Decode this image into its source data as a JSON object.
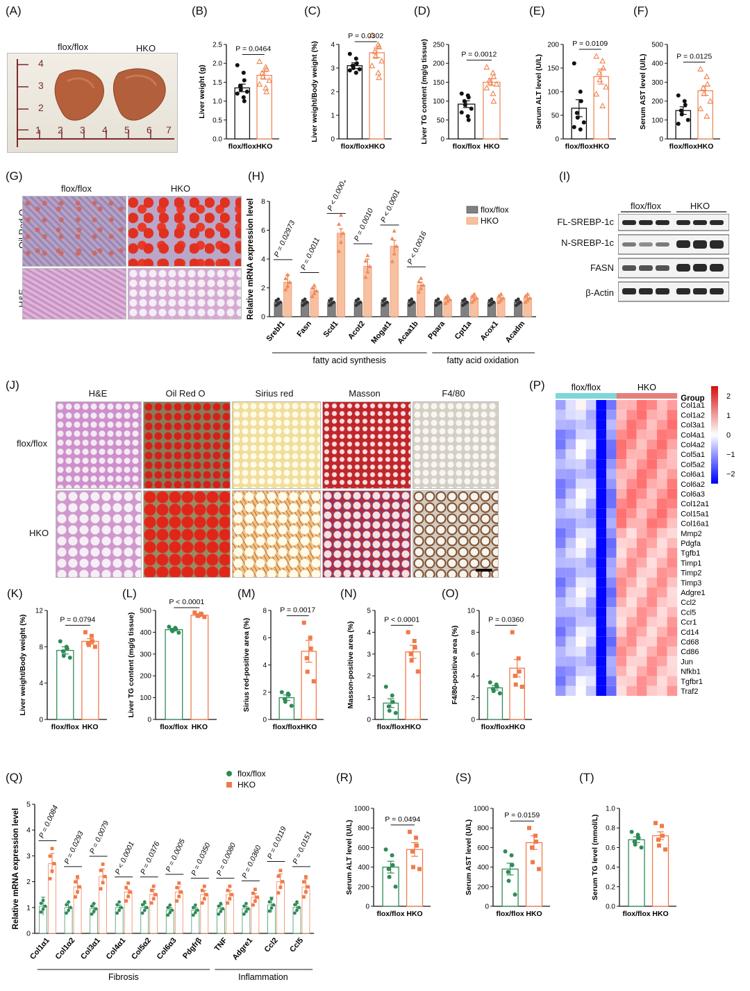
{
  "colors": {
    "flox": "#111111",
    "hko": "#ef8a5a",
    "flox_green": "#2e8b57",
    "hko_orange": "#f07a4a",
    "flox_bar": "#808080",
    "hko_bar": "#f7c0a0"
  },
  "panel_labels": [
    "(A)",
    "(B)",
    "(C)",
    "(D)",
    "(E)",
    "(F)",
    "(G)",
    "(H)",
    "(I)",
    "(J)",
    "(K)",
    "(L)",
    "(M)",
    "(N)",
    "(O)",
    "(P)",
    "(Q)",
    "(R)",
    "(S)",
    "(T)"
  ],
  "panelA": {
    "label_flox": "flox/flox",
    "label_hko": "HKO",
    "ruler_numbers": [
      "4",
      "3",
      "2",
      "1",
      "2",
      "3",
      "4",
      "5",
      "6",
      "7"
    ]
  },
  "panelG": {
    "cols": [
      "flox/flox",
      "HKO"
    ],
    "rows": [
      "Oil Red O",
      "H&E"
    ]
  },
  "panelI": {
    "groups": [
      "flox/flox",
      "HKO"
    ],
    "bands": [
      "FL-SREBP-1c",
      "N-SREBP-1c",
      "FASN",
      "β-Actin"
    ]
  },
  "panelJ": {
    "cols": [
      "H&E",
      "Oil Red O",
      "Sirius red",
      "Masson",
      "F4/80"
    ],
    "rows": [
      "flox/flox",
      "HKO"
    ]
  },
  "chart_data": [
    {
      "id": "B",
      "type": "bar",
      "categories": [
        "flox/flox",
        "HKO"
      ],
      "values": [
        1.35,
        1.68
      ],
      "errors": [
        0.1,
        0.1
      ],
      "ylim": [
        0,
        2.5
      ],
      "ticks": [
        "0.0",
        "0.5",
        "1.0",
        "1.5",
        "2.0",
        "2.5"
      ],
      "ylabel": "Liver weight (g)",
      "pvalue": "P = 0.0464",
      "points": [
        [
          1.95,
          1.75,
          1.55,
          1.4,
          1.3,
          1.25,
          1.2,
          1.1,
          1.0
        ],
        [
          2.05,
          1.9,
          1.85,
          1.75,
          1.65,
          1.55,
          1.45,
          1.35,
          1.25
        ]
      ]
    },
    {
      "id": "C",
      "type": "bar",
      "categories": [
        "flox/flox",
        "HKO"
      ],
      "values": [
        3.1,
        3.65
      ],
      "errors": [
        0.12,
        0.2
      ],
      "ylim": [
        0,
        4
      ],
      "ticks": [
        "0",
        "1",
        "2",
        "3",
        "4"
      ],
      "ylabel": "Liver weight/Body weight (%)",
      "pvalue": "P = 0.0302",
      "points": [
        [
          3.6,
          3.4,
          3.2,
          3.1,
          3.0,
          2.95,
          2.9,
          2.8
        ],
        [
          4.4,
          4.0,
          3.9,
          3.7,
          3.5,
          3.3,
          3.1,
          2.8,
          2.6
        ]
      ]
    },
    {
      "id": "D",
      "type": "bar",
      "categories": [
        "flox/flox",
        "HKO"
      ],
      "values": [
        92,
        150
      ],
      "errors": [
        9,
        9
      ],
      "ylim": [
        0,
        250
      ],
      "ticks": [
        "0",
        "50",
        "100",
        "150",
        "200",
        "250"
      ],
      "ylabel": "Liver TG content (mg/g tissue)",
      "pvalue": "P = 0.0012",
      "points": [
        [
          120,
          115,
          110,
          100,
          90,
          80,
          70,
          60,
          50
        ],
        [
          190,
          175,
          165,
          155,
          150,
          145,
          135,
          120,
          100
        ]
      ]
    },
    {
      "id": "E",
      "type": "bar",
      "categories": [
        "flox/flox",
        "HKO"
      ],
      "values": [
        65,
        132
      ],
      "errors": [
        18,
        16
      ],
      "ylim": [
        0,
        200
      ],
      "ticks": [
        "0",
        "50",
        "100",
        "150",
        "200"
      ],
      "ylabel": "Serum ALT level (U/L)",
      "pvalue": "P = 0.0109",
      "points": [
        [
          160,
          100,
          80,
          55,
          45,
          35,
          25,
          20
        ],
        [
          175,
          165,
          150,
          140,
          125,
          110,
          95,
          70
        ]
      ]
    },
    {
      "id": "F",
      "type": "bar",
      "categories": [
        "flox/flox",
        "HKO"
      ],
      "values": [
        150,
        255
      ],
      "errors": [
        20,
        25
      ],
      "ylim": [
        0,
        500
      ],
      "ticks": [
        "0",
        "100",
        "200",
        "300",
        "400",
        "500"
      ],
      "ylabel": "Serum AST level (U/L)",
      "pvalue": "P = 0.0125",
      "points": [
        [
          230,
          200,
          180,
          150,
          130,
          100,
          80
        ],
        [
          370,
          330,
          290,
          270,
          240,
          200,
          160,
          120
        ]
      ]
    },
    {
      "id": "H",
      "type": "grouped_bar",
      "categories": [
        "Srebf1",
        "Fasn",
        "Scd1",
        "Acot2",
        "Mogat1",
        "Acaa1b",
        "Ppara",
        "Cpt1a",
        "Acox1",
        "Acadm"
      ],
      "series": [
        {
          "name": "flox/flox",
          "values": [
            1.0,
            1.0,
            1.0,
            1.0,
            1.0,
            1.0,
            1.0,
            1.0,
            1.0,
            1.0
          ]
        },
        {
          "name": "HKO",
          "values": [
            2.4,
            1.8,
            5.8,
            3.5,
            4.9,
            2.2,
            1.2,
            1.3,
            1.3,
            1.3
          ]
        }
      ],
      "errors": [
        [
          0.2,
          0.1,
          0.3,
          0.2,
          0.3,
          0.1,
          0.05,
          0.1,
          0.1,
          0.1
        ],
        [
          0.5,
          0.2,
          0.3,
          0.5,
          0.4,
          0.2,
          0.1,
          0.1,
          0.2,
          0.2
        ]
      ],
      "ylim": [
        0,
        8
      ],
      "ticks": [
        "0",
        "2",
        "4",
        "6",
        "8"
      ],
      "ylabel": "Relative mRNA expression level",
      "pvalues": [
        "P = 0.02973",
        "P = 0.0011",
        "P < 0.0001",
        "P = 0.0010",
        "P < 0.0001",
        "P < 0.0016"
      ],
      "groups": [
        "fatty acid synthesis",
        "fatty acid oxidation"
      ]
    },
    {
      "id": "K",
      "type": "bar",
      "categories": [
        "flox/flox",
        "HKO"
      ],
      "values": [
        7.6,
        8.6
      ],
      "errors": [
        0.4,
        0.3
      ],
      "ylim": [
        0,
        12
      ],
      "ticks": [
        "0",
        "4",
        "8",
        "12"
      ],
      "ylabel": "Liver weight/Body weight (%)",
      "pvalue": "P = 0.0794",
      "points": [
        [
          8.6,
          8.0,
          7.8,
          7.5,
          7.0,
          6.8
        ],
        [
          9.6,
          9.2,
          8.6,
          8.4,
          8.2,
          8.0
        ]
      ]
    },
    {
      "id": "L",
      "type": "bar",
      "categories": [
        "flox/flox",
        "HKO"
      ],
      "values": [
        412,
        478
      ],
      "errors": [
        6,
        4
      ],
      "ylim": [
        0,
        500
      ],
      "ticks": [
        "0",
        "100",
        "200",
        "300",
        "400",
        "500"
      ],
      "ylabel": "Liver TG content (mg/g tissue)",
      "pvalue": "P < 0.0001",
      "points": [
        [
          425,
          420,
          415,
          410,
          405,
          398
        ],
        [
          490,
          485,
          480,
          478,
          475,
          470
        ]
      ]
    },
    {
      "id": "M",
      "type": "bar",
      "categories": [
        "flox/flox",
        "HKO"
      ],
      "values": [
        1.6,
        5.0
      ],
      "errors": [
        0.2,
        0.8
      ],
      "ylim": [
        0,
        8
      ],
      "ticks": [
        "0",
        "2",
        "4",
        "6",
        "8"
      ],
      "ylabel": "Sirius red-positive area (%)",
      "pvalue": "P = 0.0017",
      "points": [
        [
          2.0,
          1.9,
          1.8,
          1.5,
          1.3,
          1.0
        ],
        [
          7.1,
          6.0,
          5.2,
          4.5,
          3.5,
          2.8
        ]
      ]
    },
    {
      "id": "N",
      "type": "bar",
      "categories": [
        "flox/flox",
        "HKO"
      ],
      "values": [
        0.75,
        3.1
      ],
      "errors": [
        0.2,
        0.3
      ],
      "ylim": [
        0,
        5
      ],
      "ticks": [
        "0",
        "1",
        "2",
        "3",
        "4",
        "5"
      ],
      "ylabel": "Masson-positive area (%)",
      "pvalue": "P < 0.0001",
      "points": [
        [
          1.5,
          1.1,
          0.8,
          0.6,
          0.4,
          0.3
        ],
        [
          4.0,
          3.6,
          3.3,
          3.0,
          2.7,
          2.2
        ]
      ]
    },
    {
      "id": "O",
      "type": "bar",
      "categories": [
        "flox/flox",
        "HKO"
      ],
      "values": [
        2.9,
        4.7
      ],
      "errors": [
        0.2,
        0.8
      ],
      "ylim": [
        0,
        10
      ],
      "ticks": [
        "0",
        "2",
        "4",
        "6",
        "8",
        "10"
      ],
      "ylabel": "F4/80-positive area (%)",
      "pvalue": "P = 0.0360",
      "points": [
        [
          3.4,
          3.2,
          3.0,
          2.8,
          2.6,
          2.4
        ],
        [
          8.0,
          5.6,
          4.4,
          4.0,
          3.2,
          3.0
        ]
      ]
    },
    {
      "id": "P",
      "type": "heatmap",
      "title_groups": [
        "flox/flox",
        "HKO"
      ],
      "legend_title": "Group",
      "scale_ticks": [
        "2",
        "1",
        "0",
        "−1",
        "−2"
      ],
      "genes": [
        "Col1a1",
        "Col1a2",
        "Col3a1",
        "Col4a1",
        "Col4a2",
        "Col5a1",
        "Col5a2",
        "Col6a1",
        "Col6a2",
        "Col6a3",
        "Col12a1",
        "Col15a1",
        "Col16a1",
        "Mmp2",
        "Pdgfa",
        "Tgfb1",
        "Timp1",
        "Timp2",
        "Timp3",
        "Adgre1",
        "Ccl2",
        "Ccl5",
        "Ccr1",
        "Cd14",
        "Cd68",
        "Cd86",
        "Jun",
        "Nfkb1",
        "Tgfbr1",
        "Traf2"
      ]
    },
    {
      "id": "Q",
      "type": "grouped_bar",
      "categories": [
        "Col1α1",
        "Col1α2",
        "Col3α1",
        "Col4α1",
        "Col5α2",
        "Col6α3",
        "Pdgfrβ",
        "TNF",
        "Adgre1",
        "Ccl2",
        "Ccl5"
      ],
      "series": [
        {
          "name": "flox/flox",
          "values": [
            1.05,
            1.0,
            0.95,
            1.0,
            1.0,
            0.9,
            0.9,
            0.95,
            0.95,
            1.1,
            1.0
          ]
        },
        {
          "name": "HKO",
          "values": [
            2.7,
            1.8,
            2.2,
            1.6,
            1.5,
            1.6,
            1.5,
            1.5,
            1.4,
            2.0,
            1.8
          ]
        }
      ],
      "errors": [
        [
          0.35,
          0.2,
          0.2,
          0.1,
          0.15,
          0.1,
          0.1,
          0.15,
          0.1,
          0.3,
          0.15
        ],
        [
          0.4,
          0.3,
          0.3,
          0.1,
          0.2,
          0.2,
          0.15,
          0.15,
          0.15,
          0.3,
          0.3
        ]
      ],
      "ylim": [
        0,
        5
      ],
      "ticks": [
        "0",
        "1",
        "2",
        "3",
        "4",
        "5"
      ],
      "ylabel": "Relative mRNA expression level",
      "pvalues": [
        "P = 0.0084",
        "P = 0.0293",
        "P = 0.0079",
        "P < 0.0001",
        "P = 0.0376",
        "P = 0.0005",
        "P = 0.0350",
        "P = 0.0080",
        "P = 0.0360",
        "P = 0.0119",
        "P = 0.0151"
      ],
      "groups": [
        "Fibrosis",
        "Inflammation"
      ]
    },
    {
      "id": "R",
      "type": "bar",
      "categories": [
        "flox/flox",
        "HKO"
      ],
      "values": [
        400,
        580
      ],
      "errors": [
        60,
        70
      ],
      "ylim": [
        0,
        1000
      ],
      "ticks": [
        "0",
        "200",
        "400",
        "600",
        "800",
        "1000"
      ],
      "ylabel": "Serum ALT level (U/L)",
      "pvalue": "P = 0.0494",
      "points": [
        [
          580,
          520,
          420,
          380,
          300,
          200
        ],
        [
          760,
          700,
          620,
          560,
          400,
          380
        ]
      ]
    },
    {
      "id": "S",
      "type": "bar",
      "categories": [
        "flox/flox",
        "HKO"
      ],
      "values": [
        380,
        650
      ],
      "errors": [
        60,
        70
      ],
      "ylim": [
        0,
        1000
      ],
      "ticks": [
        "0",
        "200",
        "400",
        "600",
        "800",
        "1000"
      ],
      "ylabel": "Serum AST level (U/L)",
      "pvalue": "P = 0.0159",
      "points": [
        [
          560,
          520,
          420,
          350,
          260,
          120
        ],
        [
          800,
          720,
          660,
          600,
          450,
          380
        ]
      ]
    },
    {
      "id": "T",
      "type": "bar",
      "categories": [
        "flox/flox",
        "HKO"
      ],
      "values": [
        0.68,
        0.72
      ],
      "errors": [
        0.03,
        0.04
      ],
      "ylim": [
        0,
        1.0
      ],
      "ticks": [
        "0.0",
        "0.2",
        "0.4",
        "0.6",
        "0.8",
        "1.0"
      ],
      "ylabel": "Serum TG level (mmol/L)",
      "pvalue": "",
      "points": [
        [
          0.76,
          0.73,
          0.7,
          0.66,
          0.63,
          0.6
        ],
        [
          0.85,
          0.82,
          0.72,
          0.68,
          0.62,
          0.58
        ]
      ]
    }
  ]
}
